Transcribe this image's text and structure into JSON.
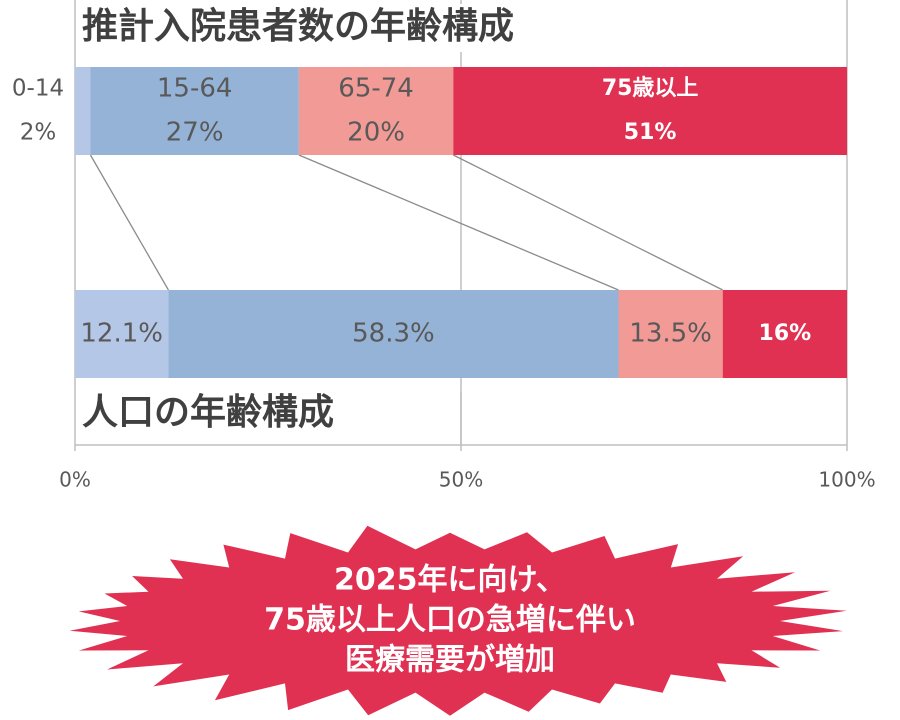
{
  "chart_data": {
    "type": "bar",
    "orientation": "horizontal",
    "stacked": true,
    "xlim": [
      0,
      100
    ],
    "x_ticks": [
      "0%",
      "50%",
      "100%"
    ],
    "bars": [
      {
        "title": "推計入院患者数の年齢構成",
        "segments": [
          {
            "label": "0-14",
            "value_text": "2%",
            "value": 2,
            "color": "#b4c7e7"
          },
          {
            "label": "15-64",
            "value_text": "27%",
            "value": 27,
            "color": "#95b3d7"
          },
          {
            "label": "65-74",
            "value_text": "20%",
            "value": 20,
            "color": "#f19a96"
          },
          {
            "label": "75歳以上",
            "value_text": "51%",
            "value": 51,
            "color": "#e03152"
          }
        ]
      },
      {
        "title": "人口の年齢構成",
        "segments": [
          {
            "label": "",
            "value_text": "12.1%",
            "value": 12.1,
            "color": "#b4c7e7"
          },
          {
            "label": "",
            "value_text": "58.3%",
            "value": 58.3,
            "color": "#95b3d7"
          },
          {
            "label": "",
            "value_text": "13.5%",
            "value": 13.5,
            "color": "#f19a96"
          },
          {
            "label": "",
            "value_text": "16%",
            "value": 16.1,
            "color": "#e03152"
          }
        ]
      }
    ],
    "callout": {
      "lines": [
        "2025年に向け、",
        "75歳以上人口の急増に伴い",
        "医療需要が増加"
      ],
      "color": "#e03152"
    }
  }
}
